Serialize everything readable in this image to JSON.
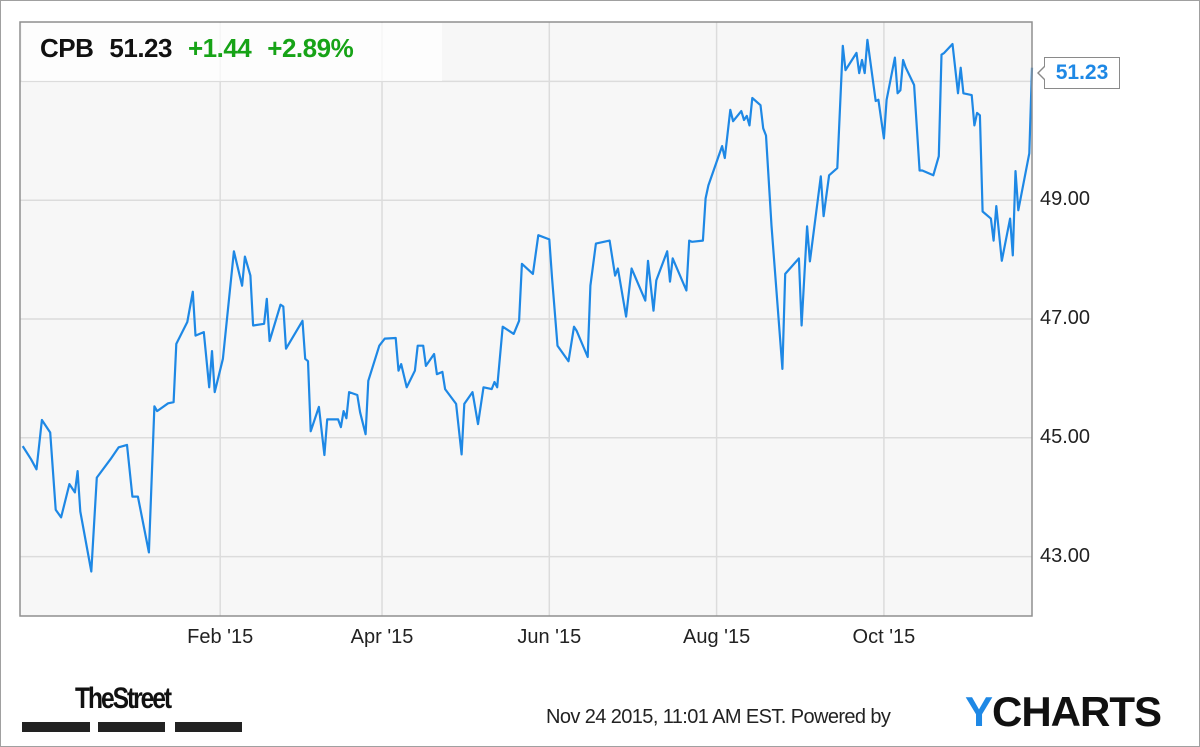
{
  "header": {
    "symbol": "CPB",
    "price": "51.23",
    "change": "+1.44",
    "change_pct": "+2.89%"
  },
  "colors": {
    "line": "#1e88e5",
    "positive": "#17a317",
    "plot_bg": "#f7f7f7",
    "grid": "#dcdcdc"
  },
  "footer": {
    "publisher_logo": "TheStreet",
    "timestamp": "Nov 24 2015, 11:01 AM EST.",
    "powered_by": "Powered by",
    "brand_logo_first": "Y",
    "brand_logo_rest": "CHARTS"
  },
  "chart_data": {
    "type": "line",
    "title": "",
    "xlabel": "",
    "ylabel": "",
    "grid": true,
    "xlim": [
      "2014-11-20",
      "2015-11-24"
    ],
    "ylim": [
      42,
      52
    ],
    "yticks": [
      43,
      45,
      47,
      49,
      51
    ],
    "ytick_labels": [
      "43.00",
      "45.00",
      "47.00",
      "49.00"
    ],
    "xticks": [
      "2015-02-01",
      "2015-04-01",
      "2015-06-01",
      "2015-08-01",
      "2015-10-01"
    ],
    "xtick_labels": [
      "Feb '15",
      "Apr '15",
      "Jun '15",
      "Aug '15",
      "Oct '15"
    ],
    "last_value_label": "51.23",
    "series": [
      {
        "x": [
          "2014-11-21",
          "2014-11-24",
          "2014-11-26",
          "2014-11-28",
          "2014-12-01",
          "2014-12-03",
          "2014-12-05",
          "2014-12-08",
          "2014-12-10",
          "2014-12-11",
          "2014-12-12",
          "2014-12-16",
          "2014-12-18",
          "2014-12-23",
          "2014-12-26",
          "2014-12-29",
          "2014-12-31",
          "2015-01-02",
          "2015-01-06",
          "2015-01-08",
          "2015-01-09",
          "2015-01-13",
          "2015-01-15",
          "2015-01-16",
          "2015-01-20",
          "2015-01-22",
          "2015-01-23",
          "2015-01-26",
          "2015-01-28",
          "2015-01-29",
          "2015-01-30",
          "2015-02-02",
          "2015-02-06",
          "2015-02-09",
          "2015-02-10",
          "2015-02-12",
          "2015-02-13",
          "2015-02-17",
          "2015-02-18",
          "2015-02-19",
          "2015-02-23",
          "2015-02-24",
          "2015-02-25",
          "2015-03-03",
          "2015-03-04",
          "2015-03-05",
          "2015-03-06",
          "2015-03-09",
          "2015-03-11",
          "2015-03-12",
          "2015-03-16",
          "2015-03-17",
          "2015-03-18",
          "2015-03-19",
          "2015-03-20",
          "2015-03-23",
          "2015-03-24",
          "2015-03-26",
          "2015-03-27",
          "2015-03-31",
          "2015-04-02",
          "2015-04-06",
          "2015-04-07",
          "2015-04-08",
          "2015-04-10",
          "2015-04-13",
          "2015-04-14",
          "2015-04-16",
          "2015-04-17",
          "2015-04-20",
          "2015-04-21",
          "2015-04-23",
          "2015-04-24",
          "2015-04-28",
          "2015-04-30",
          "2015-05-01",
          "2015-05-04",
          "2015-05-06",
          "2015-05-08",
          "2015-05-11",
          "2015-05-12",
          "2015-05-13",
          "2015-05-15",
          "2015-05-19",
          "2015-05-21",
          "2015-05-22",
          "2015-05-26",
          "2015-05-28",
          "2015-06-01",
          "2015-06-02",
          "2015-06-04",
          "2015-06-08",
          "2015-06-10",
          "2015-06-11",
          "2015-06-15",
          "2015-06-16",
          "2015-06-18",
          "2015-06-23",
          "2015-06-25",
          "2015-06-26",
          "2015-06-29",
          "2015-07-01",
          "2015-07-06",
          "2015-07-07",
          "2015-07-09",
          "2015-07-10",
          "2015-07-14",
          "2015-07-15",
          "2015-07-16",
          "2015-07-21",
          "2015-07-22",
          "2015-07-23",
          "2015-07-27",
          "2015-07-28",
          "2015-07-29",
          "2015-08-03",
          "2015-08-04",
          "2015-08-06",
          "2015-08-07",
          "2015-08-10",
          "2015-08-11",
          "2015-08-12",
          "2015-08-13",
          "2015-08-14",
          "2015-08-17",
          "2015-08-18",
          "2015-08-19",
          "2015-08-21",
          "2015-08-25",
          "2015-08-26",
          "2015-08-31",
          "2015-09-01",
          "2015-09-03",
          "2015-09-04",
          "2015-09-08",
          "2015-09-09",
          "2015-09-11",
          "2015-09-14",
          "2015-09-16",
          "2015-09-17",
          "2015-09-21",
          "2015-09-22",
          "2015-09-23",
          "2015-09-24",
          "2015-09-25",
          "2015-09-28",
          "2015-09-29",
          "2015-10-01",
          "2015-10-02",
          "2015-10-05",
          "2015-10-06",
          "2015-10-07",
          "2015-10-08",
          "2015-10-09",
          "2015-10-12",
          "2015-10-14",
          "2015-10-15",
          "2015-10-19",
          "2015-10-21",
          "2015-10-22",
          "2015-10-23",
          "2015-10-26",
          "2015-10-28",
          "2015-10-29",
          "2015-10-30",
          "2015-11-02",
          "2015-11-03",
          "2015-11-04",
          "2015-11-05",
          "2015-11-06",
          "2015-11-09",
          "2015-11-10",
          "2015-11-11",
          "2015-11-13",
          "2015-11-16",
          "2015-11-17",
          "2015-11-18",
          "2015-11-19",
          "2015-11-23",
          "2015-11-24"
        ],
        "y": [
          44.86,
          44.64,
          44.47,
          45.3,
          45.09,
          43.79,
          43.66,
          44.22,
          44.08,
          44.44,
          43.76,
          42.75,
          44.33,
          44.64,
          44.84,
          44.88,
          44.01,
          44.01,
          43.07,
          45.53,
          45.45,
          45.58,
          45.6,
          46.58,
          46.95,
          47.46,
          46.72,
          46.78,
          45.85,
          46.46,
          45.77,
          46.33,
          48.14,
          47.56,
          48.05,
          47.73,
          46.89,
          46.92,
          47.34,
          46.63,
          47.24,
          47.21,
          46.5,
          46.97,
          46.33,
          46.29,
          45.11,
          45.52,
          44.71,
          45.31,
          45.31,
          45.18,
          45.45,
          45.33,
          45.77,
          45.72,
          45.43,
          45.06,
          45.96,
          46.55,
          46.67,
          46.68,
          46.13,
          46.24,
          45.85,
          46.13,
          46.55,
          46.55,
          46.21,
          46.41,
          46.07,
          46.11,
          45.82,
          45.57,
          44.72,
          45.57,
          45.77,
          45.23,
          45.85,
          45.82,
          45.94,
          45.85,
          46.87,
          46.75,
          46.97,
          47.93,
          47.76,
          48.41,
          48.34,
          47.68,
          46.55,
          46.29,
          46.87,
          46.8,
          46.36,
          47.56,
          48.27,
          48.32,
          47.73,
          47.85,
          47.04,
          47.85,
          47.31,
          47.98,
          47.14,
          47.65,
          48.14,
          47.63,
          48.02,
          47.48,
          48.32,
          48.3,
          48.32,
          49.03,
          49.25,
          49.91,
          49.71,
          50.52,
          50.33,
          50.5,
          50.35,
          50.42,
          50.26,
          50.72,
          50.6,
          50.21,
          50.09,
          48.57,
          46.16,
          47.76,
          48.02,
          46.89,
          48.56,
          47.97,
          49.4,
          48.73,
          49.42,
          49.54,
          51.6,
          51.19,
          51.48,
          51.14,
          51.36,
          51.14,
          51.7,
          50.67,
          50.69,
          50.04,
          50.69,
          51.4,
          50.8,
          50.85,
          51.36,
          51.23,
          50.94,
          49.5,
          49.5,
          49.42,
          49.74,
          51.45,
          51.48,
          51.63,
          50.8,
          51.23,
          50.8,
          50.77,
          50.26,
          50.47,
          50.43,
          48.81,
          48.69,
          48.32,
          48.9,
          47.98,
          48.69,
          48.07,
          49.49,
          48.83,
          49.79,
          51.23
        ]
      }
    ]
  }
}
